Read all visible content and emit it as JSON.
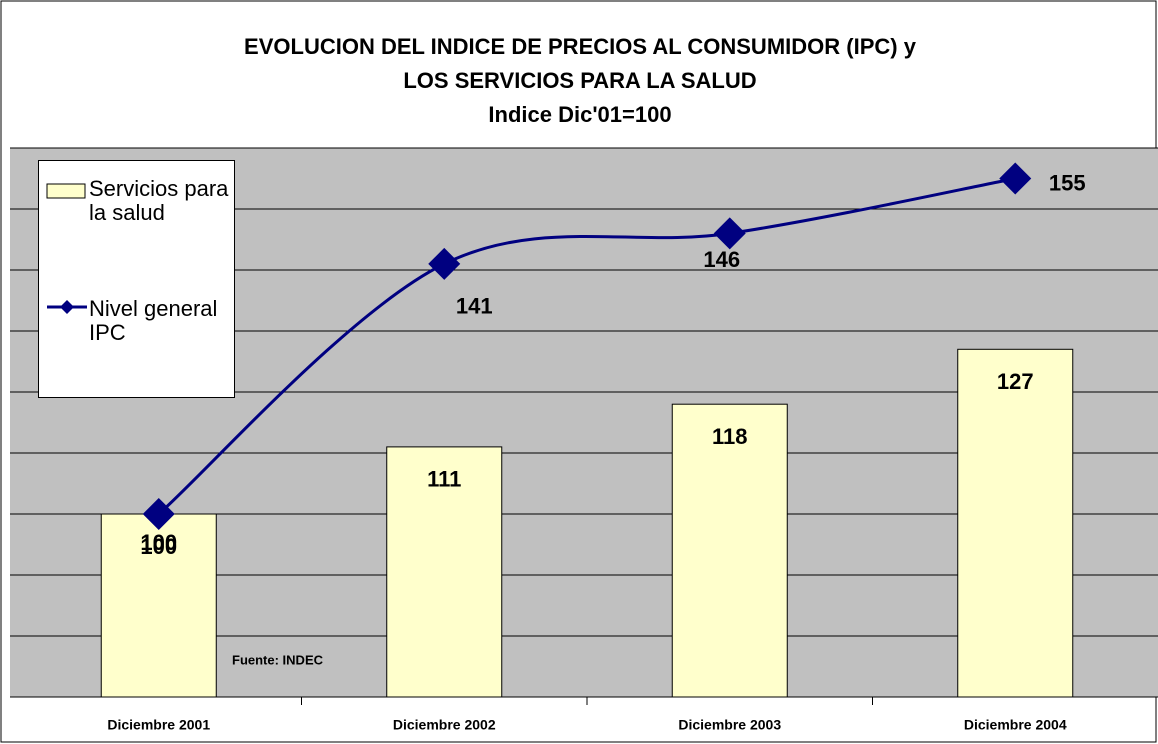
{
  "chart_data": {
    "type": "bar+line",
    "title": [
      "EVOLUCION DEL INDICE DE PRECIOS AL CONSUMIDOR (IPC) y",
      "LOS SERVICIOS PARA LA SALUD",
      "Indice Dic'01=100"
    ],
    "categories": [
      "Diciembre 2001",
      "Diciembre 2002",
      "Diciembre 2003",
      "Diciembre 2004"
    ],
    "series": [
      {
        "name": "Servicios para la salud",
        "type": "bar",
        "color": "#ffffcc",
        "values": [
          100,
          111,
          118,
          127
        ]
      },
      {
        "name": "Nivel general IPC",
        "type": "line",
        "color": "#000080",
        "smooth": true,
        "values": [
          100,
          141,
          146,
          155
        ]
      }
    ],
    "ylim": [
      70,
      160
    ],
    "yticks": [
      70,
      80,
      90,
      100,
      110,
      120,
      130,
      140,
      150,
      160
    ],
    "grid": true,
    "legend": "top-left",
    "annotation": "Fuente: INDEC"
  }
}
